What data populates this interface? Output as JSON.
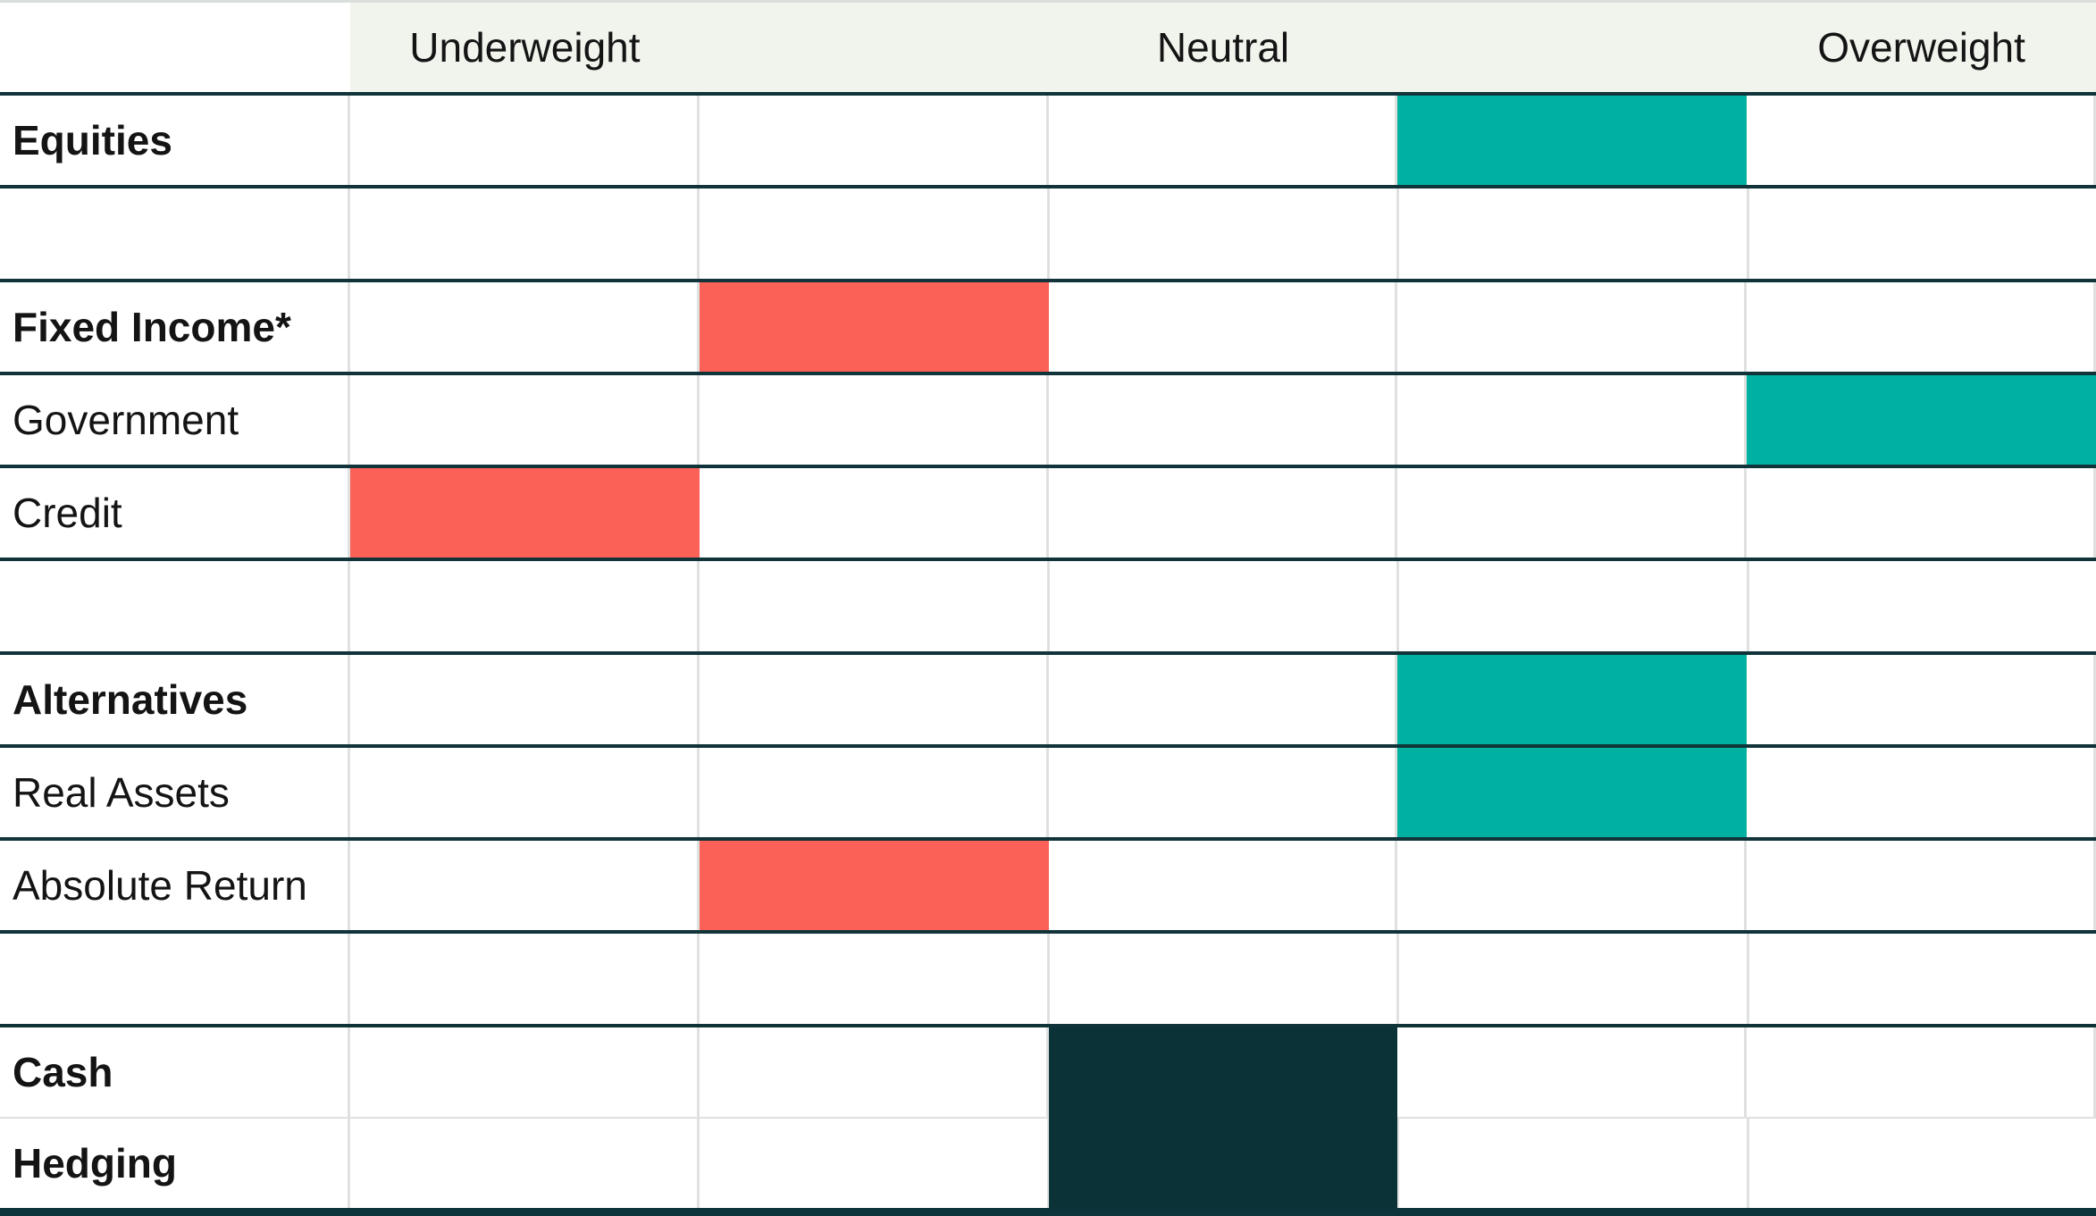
{
  "title": "Asset class positioning table",
  "header": {
    "labels": [
      "Underweight",
      "Neutral",
      "Overweight"
    ]
  },
  "colors": {
    "overweight": "#00B1A2",
    "underweight": "#FB6157",
    "neutral": "#0A3237",
    "header_bg": "#F1F4ED",
    "dark_line": "#10343A",
    "light_line": "#DEE1DF",
    "bottom_bar": "#0D343A",
    "text": "#141414",
    "background": "#FFFFFF"
  },
  "rows": [
    {
      "label": "Equities",
      "bold": true,
      "stance": "overweight",
      "column": 4
    },
    {
      "label": "",
      "spacer": true
    },
    {
      "label": "Fixed Income*",
      "bold": true,
      "stance": "underweight",
      "column": 2
    },
    {
      "label": "Government",
      "bold": false,
      "stance": "overweight",
      "column": 5
    },
    {
      "label": "Credit",
      "bold": false,
      "stance": "underweight",
      "column": 1
    },
    {
      "label": "",
      "spacer": true
    },
    {
      "label": "Alternatives",
      "bold": true,
      "stance": "overweight",
      "column": 4
    },
    {
      "label": "Real Assets",
      "bold": false,
      "stance": "overweight",
      "column": 4
    },
    {
      "label": "Absolute Return",
      "bold": false,
      "stance": "underweight",
      "column": 2
    },
    {
      "label": "",
      "spacer": true
    },
    {
      "label": "Cash",
      "bold": true,
      "stance": "neutral",
      "column": 3,
      "merge_down": true
    },
    {
      "label": "Hedging",
      "bold": true,
      "stance": "neutral",
      "column": 3,
      "merged_into_above": true
    }
  ],
  "chart_data": {
    "type": "heatmap",
    "title": "Asset allocation positioning (Underweight / Neutral / Overweight)",
    "scale_columns": 5,
    "column_headers": [
      "Underweight",
      "Neutral",
      "Overweight"
    ],
    "column_header_positions": [
      1,
      3,
      5
    ],
    "rows": [
      {
        "label": "Equities",
        "position": 4,
        "stance": "overweight"
      },
      {
        "label": "Fixed Income*",
        "position": 2,
        "stance": "underweight"
      },
      {
        "label": "Government",
        "position": 5,
        "stance": "overweight"
      },
      {
        "label": "Credit",
        "position": 1,
        "stance": "underweight"
      },
      {
        "label": "Alternatives",
        "position": 4,
        "stance": "overweight"
      },
      {
        "label": "Real Assets",
        "position": 4,
        "stance": "overweight"
      },
      {
        "label": "Absolute Return",
        "position": 2,
        "stance": "underweight"
      },
      {
        "label": "Cash",
        "position": 3,
        "stance": "neutral"
      },
      {
        "label": "Hedging",
        "position": 3,
        "stance": "neutral"
      }
    ],
    "color_coding": {
      "overweight": "#00B1A2",
      "underweight": "#FB6157",
      "neutral": "#0A3237"
    },
    "grid": true,
    "legend_position": "none"
  }
}
